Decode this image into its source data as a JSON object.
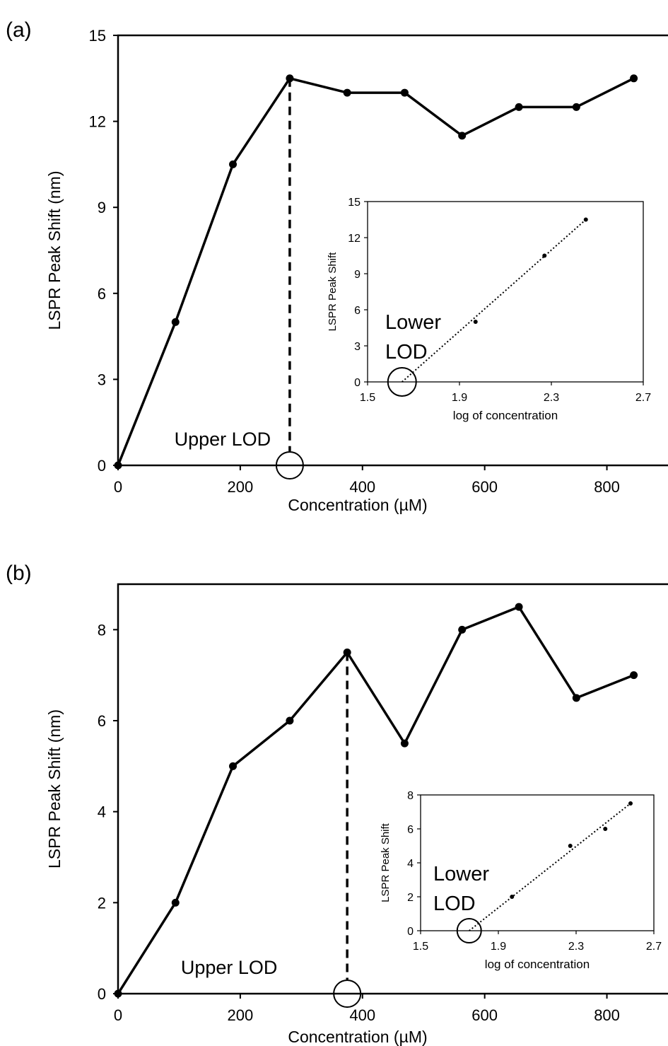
{
  "chart_data": [
    {
      "panel_label": "(a)",
      "type": "line",
      "xlabel": "Concentration (µM)",
      "ylabel": "LSPR Peak Shift (nm)",
      "xlim": [
        0,
        900
      ],
      "ylim": [
        0,
        15
      ],
      "x_ticks": [
        "0",
        "200",
        "400",
        "600",
        "800"
      ],
      "y_ticks": [
        "0",
        "3",
        "6",
        "9",
        "12",
        "15"
      ],
      "grid": false,
      "x": [
        0,
        94,
        188,
        281,
        375,
        469,
        563,
        656,
        750,
        844
      ],
      "y": [
        0,
        5,
        10.5,
        13.5,
        13,
        13,
        11.5,
        12.5,
        12.5,
        13.5
      ],
      "annotation": {
        "label": "Upper LOD",
        "x": 281,
        "y": 0
      },
      "inset": {
        "type": "scatter",
        "xlabel": "log of concentration",
        "ylabel": "LSPR Peak Shift",
        "xlim": [
          1.5,
          2.7
        ],
        "ylim": [
          0,
          15
        ],
        "x_ticks": [
          "1.5",
          "1.9",
          "2.3",
          "2.7"
        ],
        "y_ticks": [
          "0",
          "3",
          "6",
          "9",
          "12",
          "15"
        ],
        "x": [
          1.97,
          2.27,
          2.45
        ],
        "y": [
          5,
          10.5,
          13.5
        ],
        "trendline": {
          "x": [
            1.65,
            2.45
          ],
          "y": [
            0,
            13.5
          ]
        },
        "annotation": {
          "label_line1": "Lower",
          "label_line2": "LOD",
          "x": 1.65,
          "y": 0
        }
      }
    },
    {
      "panel_label": "(b)",
      "type": "line",
      "xlabel": "Concentration (µM)",
      "ylabel": "LSPR Peak Shift (nm)",
      "xlim": [
        0,
        900
      ],
      "ylim": [
        0,
        9
      ],
      "x_ticks": [
        "0",
        "200",
        "400",
        "600",
        "800"
      ],
      "y_ticks": [
        "0",
        "2",
        "4",
        "6",
        "8"
      ],
      "grid": false,
      "x": [
        0,
        94,
        188,
        281,
        375,
        469,
        563,
        656,
        750,
        844
      ],
      "y": [
        0,
        2,
        5,
        6,
        7.5,
        5.5,
        8,
        8.5,
        6.5,
        7
      ],
      "annotation": {
        "label": "Upper LOD",
        "x": 375,
        "y": 0
      },
      "inset": {
        "type": "scatter",
        "xlabel": "log of concentration",
        "ylabel": "LSPR Peak Shift",
        "xlim": [
          1.5,
          2.7
        ],
        "ylim": [
          0,
          8
        ],
        "x_ticks": [
          "1.5",
          "1.9",
          "2.3",
          "2.7"
        ],
        "y_ticks": [
          "0",
          "2",
          "4",
          "6",
          "8"
        ],
        "x": [
          1.97,
          2.27,
          2.45,
          2.58
        ],
        "y": [
          2,
          5,
          6,
          7.5
        ],
        "trendline": {
          "x": [
            1.75,
            2.58
          ],
          "y": [
            0,
            7.5
          ]
        },
        "annotation": {
          "label_line1": "Lower",
          "label_line2": "LOD",
          "x": 1.75,
          "y": 0
        }
      }
    }
  ]
}
